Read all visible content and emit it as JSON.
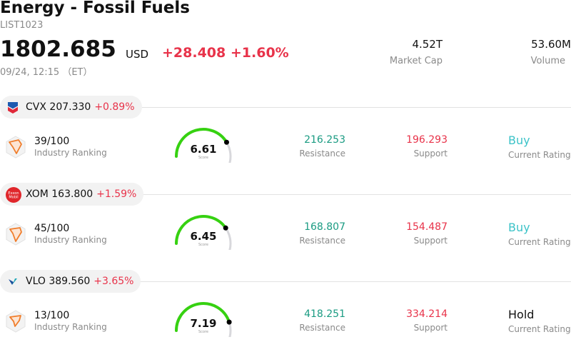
{
  "header": {
    "title": "Energy - Fossil Fuels",
    "code": "LIST1023",
    "price": "1802.685",
    "currency": "USD",
    "change": "+28.408",
    "change_pct": "+1.60%",
    "timestamp": "09/24, 12:15 （ET）",
    "market_cap_value": "4.52T",
    "market_cap_label": "Market Cap",
    "volume_value": "53.60M",
    "volume_label": "Volume"
  },
  "colors": {
    "up_red": "#e8334a",
    "resistance_green": "#1a9b82",
    "buy_teal": "#3cc3c8",
    "gauge_green": "#36d111",
    "gauge_track": "#d8d8dc"
  },
  "stocks": [
    {
      "ticker": "CVX",
      "price": "207.330",
      "change_pct": "+0.89%",
      "logo_icon": "chevron-logo-icon",
      "ranking": "39/100",
      "ranking_label": "Industry Ranking",
      "score": "6.61",
      "score_value": 6.61,
      "score_label": "Score",
      "resistance": "216.253",
      "resistance_label": "Resistance",
      "support": "196.293",
      "support_label": "Support",
      "rating": "Buy",
      "rating_label": "Current Rating"
    },
    {
      "ticker": "XOM",
      "price": "163.800",
      "change_pct": "+1.59%",
      "logo_icon": "exxonmobil-logo-icon",
      "logo_text": "Exxon Mobil",
      "ranking": "45/100",
      "ranking_label": "Industry Ranking",
      "score": "6.45",
      "score_value": 6.45,
      "score_label": "Score",
      "resistance": "168.807",
      "resistance_label": "Resistance",
      "support": "154.487",
      "support_label": "Support",
      "rating": "Buy",
      "rating_label": "Current Rating"
    },
    {
      "ticker": "VLO",
      "price": "389.560",
      "change_pct": "+3.65%",
      "logo_icon": "valero-logo-icon",
      "ranking": "13/100",
      "ranking_label": "Industry Ranking",
      "score": "7.19",
      "score_value": 7.19,
      "score_label": "Score",
      "resistance": "418.251",
      "resistance_label": "Resistance",
      "support": "334.214",
      "support_label": "Support",
      "rating": "Hold",
      "rating_label": "Current Rating"
    }
  ]
}
